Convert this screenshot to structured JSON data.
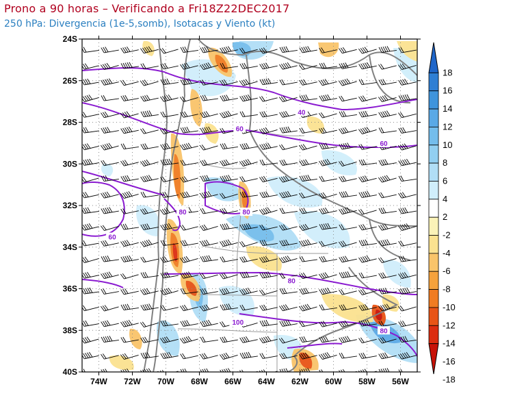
{
  "header": {
    "title": "Prono a 90 horas – Verificando a Fri18Z22DEC2017",
    "subtitle": "250 hPa: Divergencia (1e-5,somb), Isotacas y Viento (kt)"
  },
  "map": {
    "lat_range": [
      -40,
      -24
    ],
    "lon_range": [
      -75,
      -55
    ],
    "lat_ticks": [
      {
        "value": -24,
        "label": "24S"
      },
      {
        "value": -26,
        "label": "26S"
      },
      {
        "value": -28,
        "label": "28S"
      },
      {
        "value": -30,
        "label": "30S"
      },
      {
        "value": -32,
        "label": "32S"
      },
      {
        "value": -34,
        "label": "34S"
      },
      {
        "value": -36,
        "label": "36S"
      },
      {
        "value": -38,
        "label": "38S"
      },
      {
        "value": -40,
        "label": "40S"
      }
    ],
    "lon_ticks": [
      {
        "value": -74,
        "label": "74W"
      },
      {
        "value": -72,
        "label": "72W"
      },
      {
        "value": -70,
        "label": "70W"
      },
      {
        "value": -68,
        "label": "68W"
      },
      {
        "value": -66,
        "label": "66W"
      },
      {
        "value": -64,
        "label": "64W"
      },
      {
        "value": -62,
        "label": "62W"
      },
      {
        "value": -60,
        "label": "60W"
      },
      {
        "value": -58,
        "label": "58W"
      },
      {
        "value": -56,
        "label": "56W"
      }
    ],
    "isotach_labels": [
      {
        "text": "40",
        "lon": -61.9,
        "lat": -27.5
      },
      {
        "text": "60",
        "lon": -65.6,
        "lat": -28.3
      },
      {
        "text": "60",
        "lon": -57.0,
        "lat": -29.0
      },
      {
        "text": "80",
        "lon": -69.0,
        "lat": -32.3
      },
      {
        "text": "80",
        "lon": -65.2,
        "lat": -32.3
      },
      {
        "text": "60",
        "lon": -73.2,
        "lat": -33.5
      },
      {
        "text": "80",
        "lon": -62.5,
        "lat": -35.6
      },
      {
        "text": "100",
        "lon": -65.7,
        "lat": -37.6
      },
      {
        "text": "80",
        "lon": -57.0,
        "lat": -38.0
      }
    ],
    "colors": {
      "isotach": "#8a1ad0",
      "border": "#808080",
      "grid": "#8a8a8a"
    }
  },
  "colorbar": {
    "labels": [
      "18",
      "16",
      "14",
      "12",
      "10",
      "8",
      "6",
      "4",
      "2",
      "-2",
      "-4",
      "-6",
      "-8",
      "-10",
      "-12",
      "-14",
      "-16",
      "-18"
    ],
    "colors": [
      "#1f66c9",
      "#2f7fd4",
      "#3f94dc",
      "#5aa9e6",
      "#74bdec",
      "#92cff1",
      "#b1def6",
      "#d0eefb",
      "#ffffff",
      "#fbf3b8",
      "#fbe290",
      "#f9c46a",
      "#f5a23c",
      "#f07c22",
      "#e85416",
      "#dc2d10",
      "#c81208"
    ]
  }
}
